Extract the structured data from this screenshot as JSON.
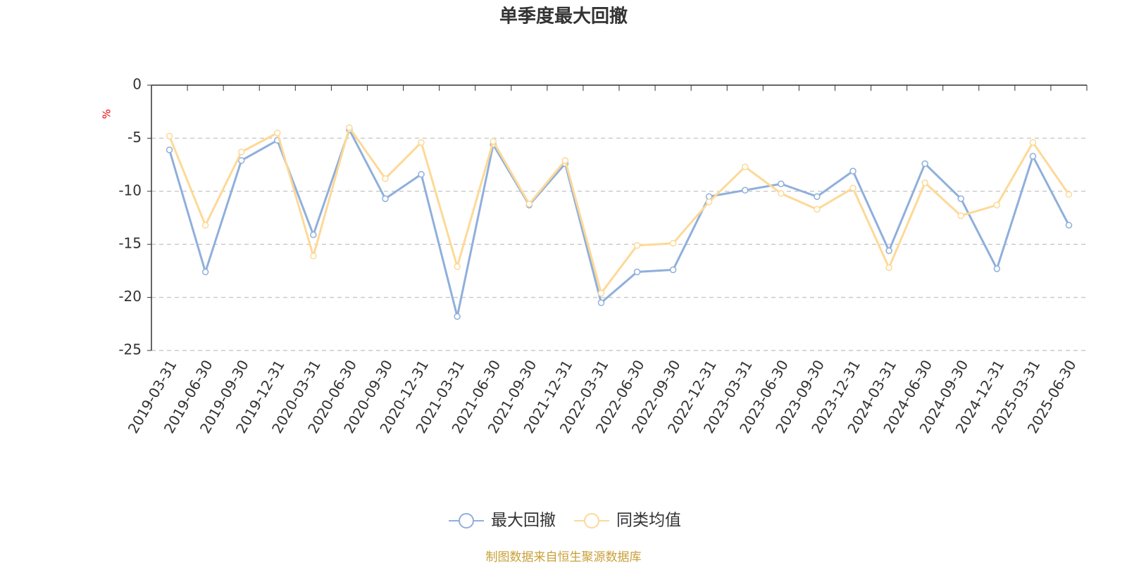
{
  "chart_data": {
    "type": "line",
    "title": "单季度最大回撤",
    "y_label": "%",
    "categories": [
      "2019-03-31",
      "2019-06-30",
      "2019-09-30",
      "2019-12-31",
      "2020-03-31",
      "2020-06-30",
      "2020-09-30",
      "2020-12-31",
      "2021-03-31",
      "2021-06-30",
      "2021-09-30",
      "2021-12-31",
      "2022-03-31",
      "2022-06-30",
      "2022-09-30",
      "2022-12-31",
      "2023-03-31",
      "2023-06-30",
      "2023-09-30",
      "2023-12-31",
      "2024-03-31",
      "2024-06-30",
      "2024-09-30",
      "2024-12-31",
      "2025-03-31",
      "2025-06-30"
    ],
    "series": [
      {
        "name": "最大回撤",
        "color": "#8fafdc",
        "values": [
          -6.1,
          -17.6,
          -7.1,
          -5.2,
          -14.1,
          -4.2,
          -10.7,
          -8.4,
          -21.8,
          -5.6,
          -11.3,
          -7.4,
          -20.5,
          -17.6,
          -17.4,
          -10.5,
          -9.9,
          -9.3,
          -10.5,
          -8.1,
          -15.6,
          -7.4,
          -10.7,
          -17.3,
          -6.7,
          -13.2
        ]
      },
      {
        "name": "同类均值",
        "color": "#fdd997",
        "values": [
          -4.8,
          -13.2,
          -6.3,
          -4.5,
          -16.1,
          -4.0,
          -8.8,
          -5.4,
          -17.1,
          -5.3,
          -11.2,
          -7.1,
          -19.6,
          -15.1,
          -14.9,
          -11.0,
          -7.7,
          -10.2,
          -11.7,
          -9.7,
          -17.2,
          -9.2,
          -12.3,
          -11.3,
          -5.4,
          -10.3
        ]
      }
    ],
    "ylim": [
      -25,
      0
    ],
    "yticks": [
      0,
      -5,
      -10,
      -15,
      -20,
      -25
    ],
    "grid": true,
    "legend": "bottom",
    "source": "制图数据来自恒生聚源数据库"
  }
}
